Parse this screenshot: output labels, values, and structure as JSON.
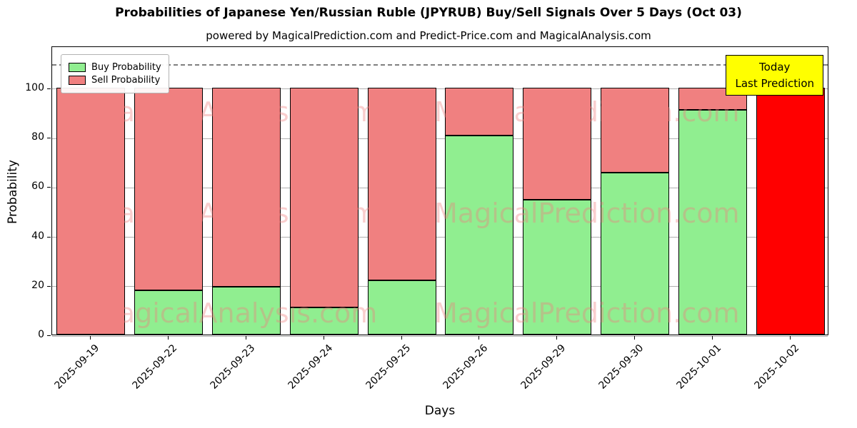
{
  "title": "Probabilities of Japanese Yen/Russian Ruble (JPYRUB) Buy/Sell Signals Over 5 Days (Oct 03)",
  "subtitle": "powered by MagicalPrediction.com and Predict-Price.com and MagicalAnalysis.com",
  "legend": {
    "buy_label": "Buy Probability",
    "sell_label": "Sell Probability"
  },
  "annotation": {
    "line1": "Today",
    "line2": "Last Prediction",
    "bg_color": "#ffff00"
  },
  "watermarks": {
    "left_text": "MagicalAnalysis.com",
    "right_text": "MagicalPrediction.com"
  },
  "chart_data": {
    "type": "bar",
    "stacked": true,
    "title": "Probabilities of Japanese Yen/Russian Ruble (JPYRUB) Buy/Sell Signals Over 5 Days (Oct 03)",
    "xlabel": "Days",
    "ylabel": "Probability",
    "categories": [
      "2025-09-19",
      "2025-09-22",
      "2025-09-23",
      "2025-09-24",
      "2025-09-25",
      "2025-09-26",
      "2025-09-29",
      "2025-09-30",
      "2025-10-01",
      "2025-10-02"
    ],
    "series": [
      {
        "name": "Buy Probability",
        "color": "#90ee90",
        "values": [
          0,
          18,
          19.5,
          11,
          22,
          80.5,
          54.5,
          65.5,
          91,
          0
        ]
      },
      {
        "name": "Sell Probability",
        "color": "#f08080",
        "values": [
          100,
          82,
          80.5,
          89,
          78,
          19.5,
          45.5,
          34.5,
          9,
          100
        ]
      }
    ],
    "last_bar_color": "#ff0000",
    "yticks": [
      0,
      20,
      40,
      60,
      80,
      100
    ],
    "ylim": [
      0,
      117
    ],
    "dashed_line_y": 110,
    "grid": true,
    "legend_position": "upper left"
  }
}
